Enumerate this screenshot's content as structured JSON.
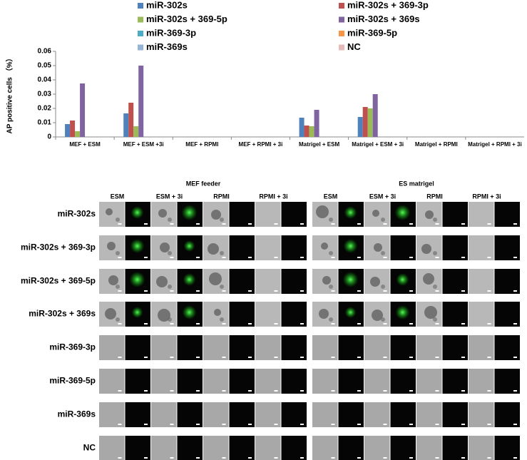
{
  "chart_data": {
    "type": "bar",
    "ylabel": "AP positive cells （%）",
    "categories": [
      "MEF + ESM",
      "MEF + ESM +3i",
      "MEF + RPMI",
      "MEF + RPMI + 3i",
      "Matrigel + ESM",
      "Matrigel + ESM + 3i",
      "Matrigel + RPMI",
      "Matrigel + RPMI + 3i"
    ],
    "series": [
      {
        "name": "miR-302s",
        "color": "#4f81bd",
        "values": [
          0.009,
          0.0165,
          0,
          0,
          0.0135,
          0.014,
          0,
          0
        ]
      },
      {
        "name": "miR-302s + 369-3p",
        "color": "#c0504d",
        "values": [
          0.0115,
          0.024,
          0,
          0,
          0.008,
          0.021,
          0,
          0
        ]
      },
      {
        "name": "miR-302s + 369-5p",
        "color": "#9bbb59",
        "values": [
          0.004,
          0.0075,
          0,
          0,
          0.0075,
          0.02,
          0,
          0
        ]
      },
      {
        "name": "miR-302s + 369s",
        "color": "#8064a2",
        "values": [
          0.0375,
          0.05,
          0,
          0,
          0.019,
          0.03,
          0,
          0
        ]
      },
      {
        "name": "miR-369-3p",
        "color": "#4bacc6",
        "values": [
          0,
          0,
          0,
          0,
          0,
          0,
          0,
          0
        ]
      },
      {
        "name": "miR-369-5p",
        "color": "#f79646",
        "values": [
          0,
          0,
          0,
          0,
          0,
          0,
          0,
          0
        ]
      },
      {
        "name": "miR-369s",
        "color": "#95b3d7",
        "values": [
          0,
          0,
          0,
          0,
          0,
          0,
          0,
          0
        ]
      },
      {
        "name": "NC",
        "color": "#e6b9b8",
        "values": [
          0,
          0,
          0,
          0,
          0,
          0,
          0,
          0
        ]
      }
    ],
    "ylim": [
      0,
      0.06
    ],
    "yticks": [
      0,
      0.01,
      0.02,
      0.03,
      0.04,
      0.05,
      0.06
    ],
    "grid": false
  },
  "image_grid": {
    "groups": [
      {
        "title": "MEF feeder",
        "conditions": [
          "ESM",
          "ESM + 3i",
          "RPMI",
          "RPMI + 3i"
        ]
      },
      {
        "title": "ES matrigel",
        "conditions": [
          "ESM",
          "ESM + 3i",
          "RPMI",
          "RPMI + 3i"
        ]
      }
    ],
    "rows": [
      "miR-302s",
      "miR-302s + 369-3p",
      "miR-302s + 369-5p",
      "miR-302s + 369s",
      "miR-369-3p",
      "miR-369-5p",
      "miR-369s",
      "NC"
    ]
  }
}
